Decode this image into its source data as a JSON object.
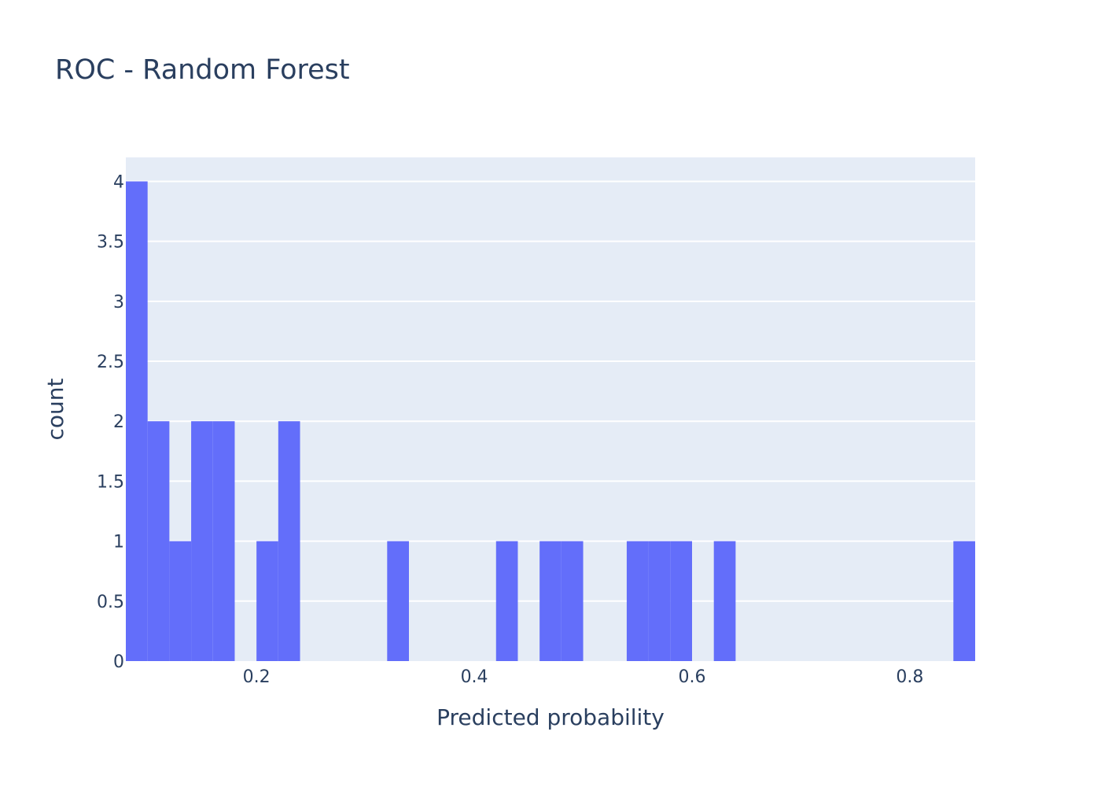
{
  "chart_data": {
    "type": "bar",
    "title": "ROC - Random Forest",
    "xlabel": "Predicted probability",
    "ylabel": "count",
    "bin_width": 0.02,
    "xlim": [
      0.08,
      0.86
    ],
    "ylim": [
      0,
      4.2
    ],
    "x_ticks": [
      0.2,
      0.4,
      0.6,
      0.8
    ],
    "x_tick_labels": [
      "0.2",
      "0.4",
      "0.6",
      "0.8"
    ],
    "y_ticks": [
      0,
      0.5,
      1,
      1.5,
      2,
      2.5,
      3,
      3.5,
      4
    ],
    "y_tick_labels": [
      "0",
      "0.5",
      "1",
      "1.5",
      "2",
      "2.5",
      "3",
      "3.5",
      "4"
    ],
    "bins": [
      {
        "x0": 0.08,
        "x1": 0.1,
        "count": 4
      },
      {
        "x0": 0.1,
        "x1": 0.12,
        "count": 2
      },
      {
        "x0": 0.12,
        "x1": 0.14,
        "count": 1
      },
      {
        "x0": 0.14,
        "x1": 0.16,
        "count": 2
      },
      {
        "x0": 0.16,
        "x1": 0.18,
        "count": 2
      },
      {
        "x0": 0.2,
        "x1": 0.22,
        "count": 1
      },
      {
        "x0": 0.22,
        "x1": 0.24,
        "count": 2
      },
      {
        "x0": 0.32,
        "x1": 0.34,
        "count": 1
      },
      {
        "x0": 0.42,
        "x1": 0.44,
        "count": 1
      },
      {
        "x0": 0.46,
        "x1": 0.48,
        "count": 1
      },
      {
        "x0": 0.48,
        "x1": 0.5,
        "count": 1
      },
      {
        "x0": 0.54,
        "x1": 0.56,
        "count": 1
      },
      {
        "x0": 0.56,
        "x1": 0.58,
        "count": 1
      },
      {
        "x0": 0.58,
        "x1": 0.6,
        "count": 1
      },
      {
        "x0": 0.62,
        "x1": 0.64,
        "count": 1
      },
      {
        "x0": 0.84,
        "x1": 0.86,
        "count": 1
      }
    ],
    "grid": true,
    "colors": {
      "bar": "#636efa",
      "plot_bg": "#e5ecf6",
      "grid": "#ffffff",
      "text": "#2a3f5f"
    }
  }
}
